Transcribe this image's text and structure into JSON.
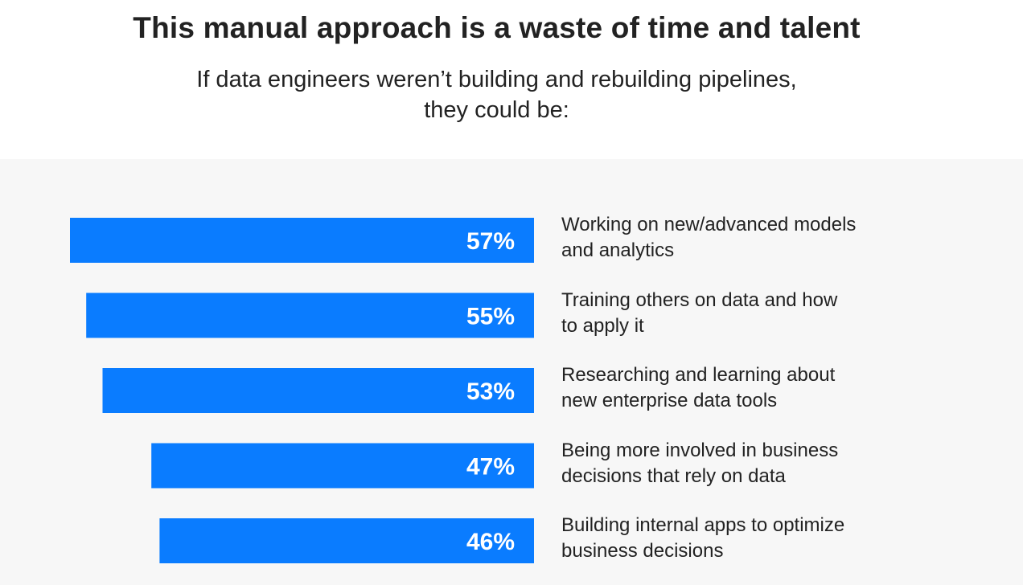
{
  "header": {
    "title": "This manual approach is a waste of time and talent",
    "subtitle_line1": "If data engineers weren’t building and rebuilding pipelines,",
    "subtitle_line2": "they could be:"
  },
  "chart_data": {
    "type": "bar",
    "orientation": "horizontal",
    "categories": [
      "Working on new/advanced models and analytics",
      "Training others on data and how to apply it",
      "Researching and learning about new enterprise data tools",
      "Being more involved in business decisions that rely on data",
      "Building internal apps to optimize business decisions"
    ],
    "values": [
      57,
      55,
      53,
      47,
      46
    ],
    "value_labels": [
      "57%",
      "55%",
      "53%",
      "47%",
      "46%"
    ],
    "unit": "%",
    "bar_color": "#0a7cff",
    "grid": false
  },
  "labels": {
    "line1": [
      "Working on new/advanced models",
      "Training others on data and how",
      "Researching and learning about",
      "Being more involved in business",
      "Building internal apps to optimize"
    ],
    "line2": [
      "and analytics",
      "to apply it",
      "new enterprise data tools",
      "decisions that rely on data",
      "business decisions"
    ]
  }
}
